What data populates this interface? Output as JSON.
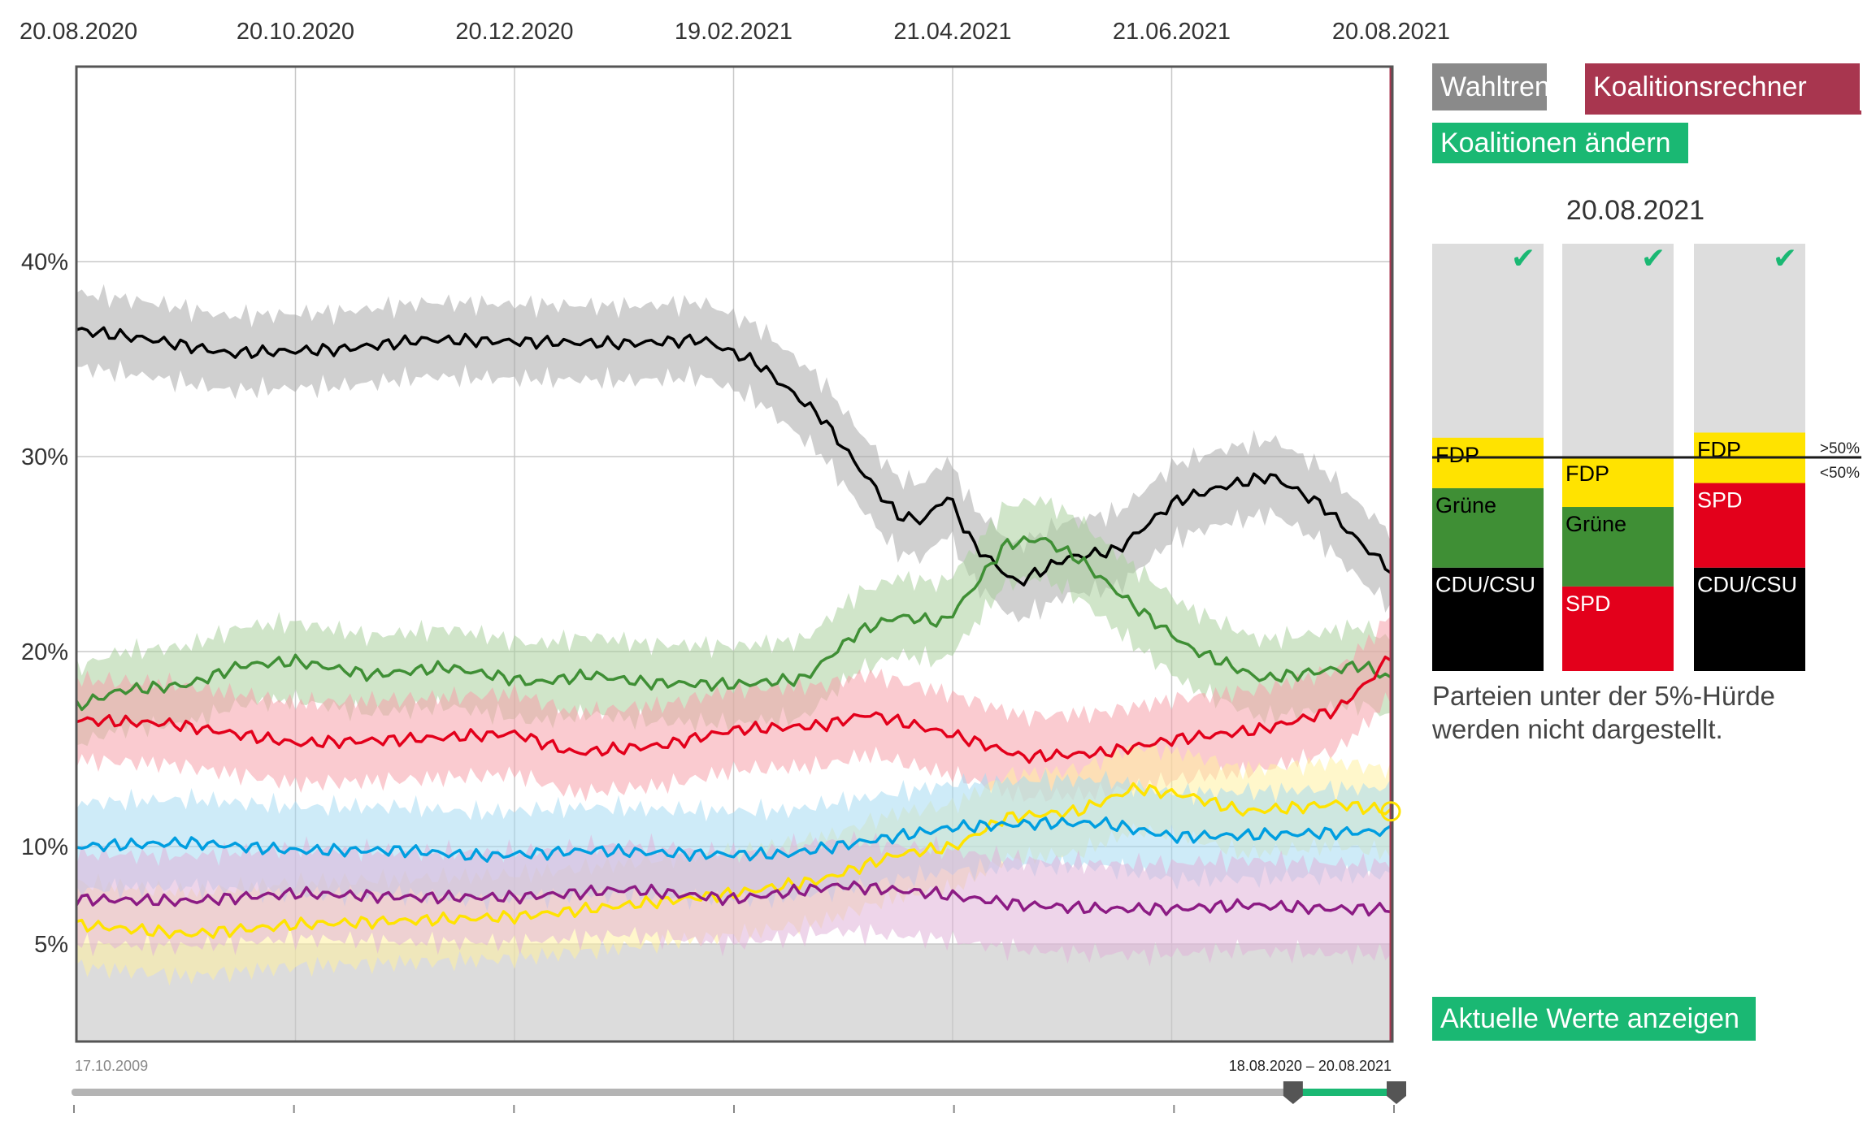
{
  "chart_data": {
    "type": "line",
    "title": "",
    "xlabel": "",
    "ylabel": "",
    "x_ticks": [
      "20.08.2020",
      "20.10.2020",
      "20.12.2020",
      "19.02.2021",
      "21.04.2021",
      "21.06.2021",
      "20.08.2021"
    ],
    "y_ticks": [
      "5%",
      "10%",
      "20%",
      "30%",
      "40%"
    ],
    "ylim": [
      0,
      50
    ],
    "xlim": [
      "2020-08-20",
      "2021-08-20"
    ],
    "grid": true,
    "threshold_label": "5%",
    "series": [
      {
        "color": "#000000",
        "band_color": "#aaaaaa",
        "points": [
          [
            "2020-08-20",
            36.5
          ],
          [
            "2020-09-10",
            36.0
          ],
          [
            "2020-10-01",
            35.3
          ],
          [
            "2020-11-01",
            35.5
          ],
          [
            "2020-11-25",
            36.0
          ],
          [
            "2020-12-20",
            35.9
          ],
          [
            "2021-01-20",
            35.8
          ],
          [
            "2021-02-10",
            36.0
          ],
          [
            "2021-02-25",
            34.8
          ],
          [
            "2021-03-15",
            32.0
          ],
          [
            "2021-03-25",
            29.5
          ],
          [
            "2021-04-05",
            27.0
          ],
          [
            "2021-04-12",
            26.7
          ],
          [
            "2021-04-19",
            28.0
          ],
          [
            "2021-04-26",
            25.5
          ],
          [
            "2021-05-08",
            23.5
          ],
          [
            "2021-05-22",
            24.8
          ],
          [
            "2021-06-05",
            25.2
          ],
          [
            "2021-06-21",
            27.7
          ],
          [
            "2021-07-05",
            28.5
          ],
          [
            "2021-07-18",
            29.0
          ],
          [
            "2021-08-01",
            27.5
          ],
          [
            "2021-08-12",
            25.5
          ],
          [
            "2021-08-20",
            24.2
          ]
        ]
      },
      {
        "color": "#3f8f35",
        "band_color": "#a9cf9d",
        "points": [
          [
            "2020-08-20",
            17.2
          ],
          [
            "2020-09-01",
            18.0
          ],
          [
            "2020-09-20",
            18.3
          ],
          [
            "2020-10-05",
            19.3
          ],
          [
            "2020-10-20",
            19.5
          ],
          [
            "2020-11-10",
            18.8
          ],
          [
            "2020-12-01",
            19.2
          ],
          [
            "2020-12-25",
            18.4
          ],
          [
            "2021-01-10",
            18.8
          ],
          [
            "2021-01-25",
            18.4
          ],
          [
            "2021-02-19",
            18.3
          ],
          [
            "2021-03-10",
            18.6
          ],
          [
            "2021-03-25",
            21.0
          ],
          [
            "2021-04-05",
            21.8
          ],
          [
            "2021-04-18",
            21.5
          ],
          [
            "2021-04-25",
            23.0
          ],
          [
            "2021-05-05",
            25.5
          ],
          [
            "2021-05-15",
            25.8
          ],
          [
            "2021-05-25",
            24.8
          ],
          [
            "2021-06-10",
            22.3
          ],
          [
            "2021-06-25",
            20.2
          ],
          [
            "2021-07-15",
            18.6
          ],
          [
            "2021-08-01",
            19.0
          ],
          [
            "2021-08-12",
            19.3
          ],
          [
            "2021-08-20",
            18.6
          ]
        ]
      },
      {
        "color": "#e3001b",
        "band_color": "#f5a1a9",
        "points": [
          [
            "2020-08-20",
            16.5
          ],
          [
            "2020-09-15",
            16.3
          ],
          [
            "2020-10-20",
            15.3
          ],
          [
            "2020-11-20",
            15.5
          ],
          [
            "2020-12-20",
            15.8
          ],
          [
            "2021-01-05",
            14.8
          ],
          [
            "2021-01-30",
            15.2
          ],
          [
            "2021-02-19",
            16.0
          ],
          [
            "2021-03-15",
            16.2
          ],
          [
            "2021-03-28",
            16.8
          ],
          [
            "2021-04-21",
            15.7
          ],
          [
            "2021-05-10",
            14.6
          ],
          [
            "2021-06-01",
            14.8
          ],
          [
            "2021-06-21",
            15.5
          ],
          [
            "2021-07-15",
            16.0
          ],
          [
            "2021-08-05",
            17.0
          ],
          [
            "2021-08-14",
            18.5
          ],
          [
            "2021-08-20",
            19.8
          ]
        ]
      },
      {
        "color": "#ffe300",
        "band_color": "#fff0a0",
        "points": [
          [
            "2020-08-20",
            6.0
          ],
          [
            "2020-09-20",
            5.5
          ],
          [
            "2020-10-20",
            6.0
          ],
          [
            "2020-11-20",
            6.2
          ],
          [
            "2020-12-20",
            6.4
          ],
          [
            "2021-01-20",
            7.0
          ],
          [
            "2021-02-19",
            7.6
          ],
          [
            "2021-03-15",
            8.3
          ],
          [
            "2021-04-05",
            9.6
          ],
          [
            "2021-04-21",
            10.0
          ],
          [
            "2021-05-05",
            11.5
          ],
          [
            "2021-05-25",
            11.8
          ],
          [
            "2021-06-10",
            13.0
          ],
          [
            "2021-06-25",
            12.6
          ],
          [
            "2021-07-10",
            11.8
          ],
          [
            "2021-07-25",
            12.0
          ],
          [
            "2021-08-05",
            12.2
          ],
          [
            "2021-08-20",
            11.8
          ]
        ]
      },
      {
        "color": "#009ee0",
        "band_color": "#a6dbf3",
        "points": [
          [
            "2020-08-20",
            10.0
          ],
          [
            "2020-09-20",
            10.2
          ],
          [
            "2020-10-20",
            9.8
          ],
          [
            "2020-11-20",
            9.8
          ],
          [
            "2020-12-10",
            9.5
          ],
          [
            "2021-01-10",
            9.8
          ],
          [
            "2021-02-10",
            9.6
          ],
          [
            "2021-03-05",
            9.6
          ],
          [
            "2021-03-25",
            10.2
          ],
          [
            "2021-04-21",
            11.0
          ],
          [
            "2021-05-15",
            11.2
          ],
          [
            "2021-06-01",
            11.2
          ],
          [
            "2021-06-21",
            10.5
          ],
          [
            "2021-07-15",
            10.6
          ],
          [
            "2021-08-20",
            10.8
          ]
        ]
      },
      {
        "color": "#8c1b84",
        "band_color": "#e0b3d9",
        "points": [
          [
            "2020-08-20",
            7.3
          ],
          [
            "2020-09-20",
            7.2
          ],
          [
            "2020-10-20",
            7.6
          ],
          [
            "2020-11-20",
            7.4
          ],
          [
            "2020-12-20",
            7.4
          ],
          [
            "2021-01-20",
            7.8
          ],
          [
            "2021-02-19",
            7.3
          ],
          [
            "2021-03-20",
            8.0
          ],
          [
            "2021-04-15",
            7.6
          ],
          [
            "2021-05-10",
            7.0
          ],
          [
            "2021-06-01",
            6.8
          ],
          [
            "2021-06-21",
            6.8
          ],
          [
            "2021-07-10",
            7.0
          ],
          [
            "2021-08-05",
            6.8
          ],
          [
            "2021-08-20",
            6.8
          ]
        ]
      }
    ]
  },
  "panel": {
    "tab_wahltrend": "Wahltrend",
    "tab_koalitionsrechner": "Koalitionsrechner",
    "change_button": "Koalitionen ändern",
    "date": "20.08.2021",
    "majority_above": ">50%",
    "majority_below": "<50%",
    "note_line1": "Parteien unter der 5%-Hürde",
    "note_line2": "werden nicht dargestellt.",
    "current_values_button": "Aktuelle Werte anzeigen",
    "check_icon": "check-icon",
    "coalitions": [
      {
        "segments": [
          {
            "label": "CDU/CSU",
            "value": 24.2,
            "color": "#000000",
            "text_color": "#ffffff"
          },
          {
            "label": "Grüne",
            "value": 18.6,
            "color": "#3f8f35",
            "text_color": "#000000"
          },
          {
            "label": "FDP",
            "value": 11.8,
            "color": "#ffe300",
            "text_color": "#000000"
          }
        ]
      },
      {
        "segments": [
          {
            "label": "SPD",
            "value": 19.8,
            "color": "#e3001b",
            "text_color": "#ffffff"
          },
          {
            "label": "Grüne",
            "value": 18.6,
            "color": "#3f8f35",
            "text_color": "#000000"
          },
          {
            "label": "FDP",
            "value": 11.8,
            "color": "#ffe300",
            "text_color": "#000000"
          }
        ]
      },
      {
        "segments": [
          {
            "label": "CDU/CSU",
            "value": 24.2,
            "color": "#000000",
            "text_color": "#ffffff"
          },
          {
            "label": "SPD",
            "value": 19.8,
            "color": "#e3001b",
            "text_color": "#ffffff"
          },
          {
            "label": "FDP",
            "value": 11.8,
            "color": "#ffe300",
            "text_color": "#000000"
          }
        ]
      }
    ]
  },
  "timeline": {
    "start_label": "17.10.2009",
    "range_label": "18.08.2020 – 20.08.2021",
    "range_start_fraction": 0.922,
    "range_end_fraction": 1.0
  }
}
